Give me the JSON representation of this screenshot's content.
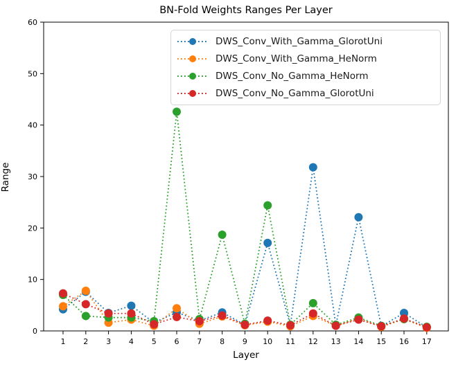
{
  "figure": {
    "background": "#ffffff",
    "text_color": "#000000"
  },
  "chart_data": {
    "type": "line",
    "title": "BN-Fold Weights Ranges Per Layer",
    "xlabel": "Layer",
    "ylabel": "Range",
    "line_style": "dotted",
    "marker": "circle",
    "grid": false,
    "legend_position": "upper center, inside axes",
    "x": [
      1,
      2,
      3,
      4,
      5,
      6,
      7,
      8,
      9,
      10,
      11,
      12,
      13,
      14,
      15,
      16,
      17
    ],
    "xlim_ticks": [
      1,
      17
    ],
    "ylim": [
      0,
      60
    ],
    "yticks": [
      0,
      10,
      20,
      30,
      40,
      50,
      60
    ],
    "series": [
      {
        "name": "DWS_Conv_With_Gamma_GlorotUni",
        "color": "#1f77b4",
        "values": [
          4.2,
          7.6,
          3.5,
          4.9,
          1.6,
          3.6,
          2.0,
          3.6,
          1.2,
          17.1,
          1.1,
          31.8,
          1.1,
          22.1,
          0.9,
          3.5,
          0.7
        ]
      },
      {
        "name": "DWS_Conv_With_Gamma_HeNorm",
        "color": "#ff7f0e",
        "values": [
          4.8,
          7.8,
          1.6,
          2.2,
          1.0,
          4.4,
          1.4,
          2.8,
          1.1,
          1.8,
          0.9,
          2.9,
          1.0,
          2.4,
          0.8,
          2.3,
          0.6
        ]
      },
      {
        "name": "DWS_Conv_No_Gamma_HeNorm",
        "color": "#2ca02c",
        "values": [
          7.0,
          2.9,
          2.6,
          2.6,
          1.9,
          42.6,
          2.3,
          18.7,
          1.4,
          24.4,
          1.2,
          5.4,
          1.2,
          2.6,
          1.0,
          2.3,
          0.8
        ]
      },
      {
        "name": "DWS_Conv_No_Gamma_GlorotUni",
        "color": "#d62728",
        "values": [
          7.3,
          5.2,
          3.4,
          3.4,
          1.3,
          2.7,
          1.9,
          3.0,
          1.2,
          2.0,
          1.1,
          3.4,
          1.0,
          2.2,
          0.9,
          2.4,
          0.7
        ]
      }
    ]
  }
}
